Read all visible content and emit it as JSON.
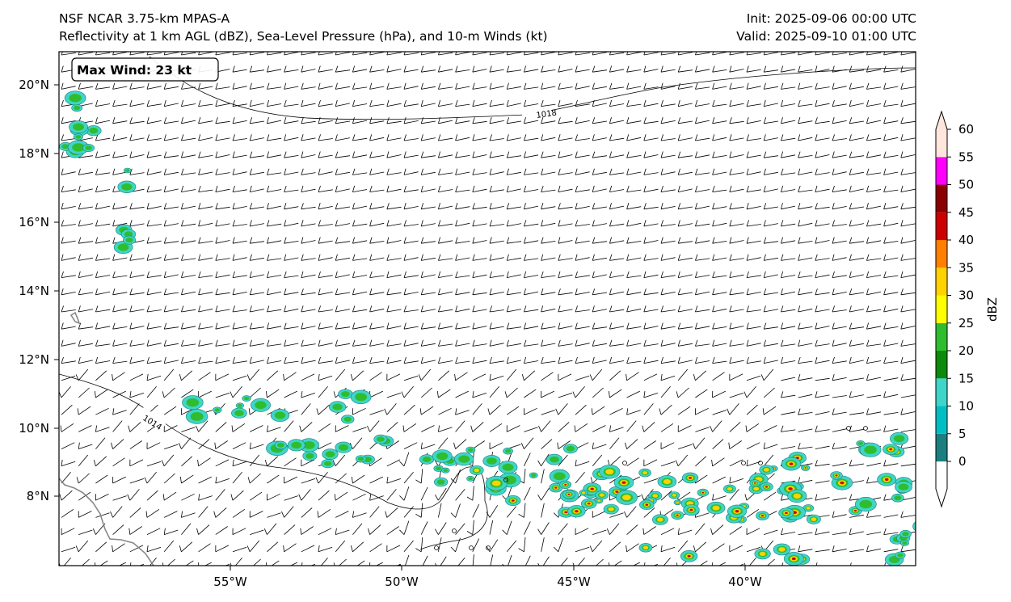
{
  "header": {
    "model_title": "NSF NCAR 3.75-km MPAS-A",
    "fields_title": "Reflectivity at 1 km AGL (dBZ), Sea-Level Pressure (hPa), and 10-m Winds (kt)",
    "init_label": "Init: 2025-09-06 00:00 UTC",
    "valid_label": "Valid: 2025-09-10 01:00 UTC"
  },
  "max_wind_label": "Max Wind: 23 kt",
  "latitude_ticks": [
    "20°N",
    "18°N",
    "16°N",
    "14°N",
    "12°N",
    "10°N",
    "8°N"
  ],
  "longitude_ticks": [
    "55°W",
    "50°W",
    "45°W",
    "40°W"
  ],
  "isobars": [
    {
      "label": "1018",
      "value": 1018
    },
    {
      "label": "1014",
      "value": 1014
    }
  ],
  "colorbar": {
    "label": "dBZ",
    "ticks": [
      "0",
      "5",
      "10",
      "15",
      "20",
      "25",
      "30",
      "35",
      "40",
      "45",
      "50",
      "55",
      "60"
    ],
    "colors": [
      "#1b7f80",
      "#00bfc4",
      "#3fd5c8",
      "#0b8a0b",
      "#2fbd2f",
      "#ffff00",
      "#ffd200",
      "#ff7f00",
      "#cc0000",
      "#8b0000",
      "#ff00ff",
      "#ffe6dc"
    ]
  }
}
